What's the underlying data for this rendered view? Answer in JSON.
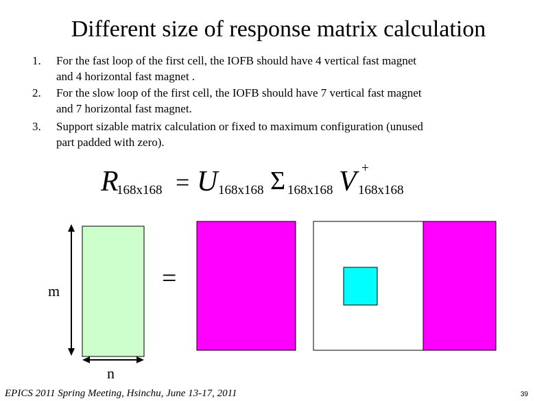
{
  "title": "Different size of response matrix calculation",
  "list": [
    {
      "number": "1.",
      "lines": [
        "For the fast loop of the first cell, the IOFB should have 4 vertical fast magnet",
        "and 4 horizontal fast magnet ."
      ]
    },
    {
      "number": "2.",
      "lines": [
        "For the slow loop of the first cell, the IOFB should have 7 vertical fast magnet",
        "and 7 horizontal fast magnet."
      ]
    },
    {
      "number": "3.",
      "lines": [
        "Support sizable matrix calculation or fixed to maximum configuration (unused",
        "part padded with zero)."
      ]
    }
  ],
  "equation": {
    "lhs": {
      "symbol": "R",
      "subscript": "168x168"
    },
    "equals": "=",
    "rhs": [
      {
        "symbol": "U",
        "subscript": "168x168"
      },
      {
        "symbol": "Σ",
        "subscript": "168x168"
      },
      {
        "symbol": "V",
        "superscript": "+",
        "subscript": "168x168"
      }
    ]
  },
  "diagram": {
    "rows_label": "m",
    "cols_label": "n",
    "equals": "="
  },
  "footer": "EPICS 2011 Spring Meeting, Hsinchu, June 13-17, 2011",
  "page_number": "39"
}
